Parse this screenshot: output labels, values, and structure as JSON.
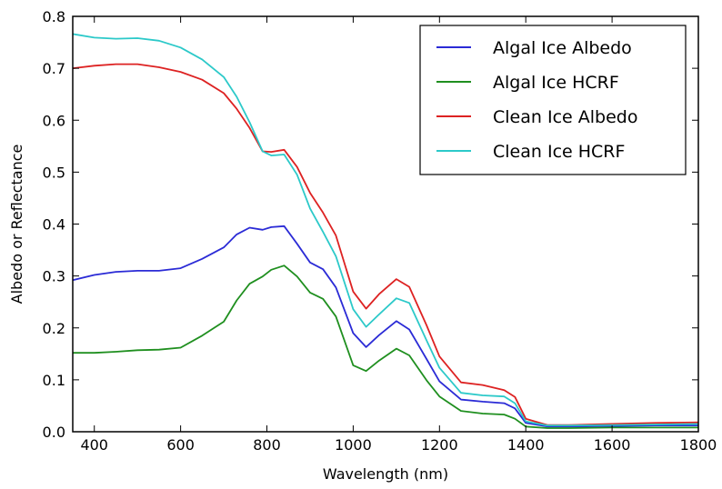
{
  "chart_data": {
    "type": "line",
    "title": "",
    "xlabel": "Wavelength (nm)",
    "ylabel": "Albedo or Reflectance",
    "xlim": [
      350,
      1800
    ],
    "ylim": [
      0.0,
      0.8
    ],
    "x_ticks": [
      400,
      600,
      800,
      1000,
      1200,
      1400,
      1600,
      1800
    ],
    "x_tick_labels": [
      "400",
      "600",
      "800",
      "1000",
      "1200",
      "1400",
      "1600",
      "1800"
    ],
    "y_ticks": [
      0.0,
      0.1,
      0.2,
      0.3,
      0.4,
      0.5,
      0.6,
      0.7,
      0.8
    ],
    "y_tick_labels": [
      "0.0",
      "0.1",
      "0.2",
      "0.3",
      "0.4",
      "0.5",
      "0.6",
      "0.7",
      "0.8"
    ],
    "grid": false,
    "legend_position": "top-right",
    "x": [
      350,
      400,
      450,
      500,
      550,
      600,
      650,
      700,
      730,
      760,
      790,
      810,
      840,
      870,
      900,
      930,
      960,
      1000,
      1030,
      1060,
      1100,
      1130,
      1170,
      1200,
      1250,
      1300,
      1350,
      1375,
      1400,
      1450,
      1500,
      1600,
      1700,
      1800
    ],
    "series": [
      {
        "name": "Algal Ice Albedo",
        "color": "#2b2bd6",
        "values": [
          0.292,
          0.302,
          0.308,
          0.31,
          0.31,
          0.315,
          0.333,
          0.355,
          0.38,
          0.393,
          0.389,
          0.394,
          0.396,
          0.362,
          0.326,
          0.313,
          0.278,
          0.19,
          0.163,
          0.186,
          0.213,
          0.197,
          0.14,
          0.097,
          0.062,
          0.058,
          0.055,
          0.045,
          0.017,
          0.01,
          0.01,
          0.011,
          0.012,
          0.012
        ]
      },
      {
        "name": "Algal Ice HCRF",
        "color": "#1f8f1f",
        "values": [
          0.152,
          0.152,
          0.154,
          0.157,
          0.158,
          0.162,
          0.185,
          0.212,
          0.253,
          0.285,
          0.299,
          0.312,
          0.32,
          0.299,
          0.268,
          0.256,
          0.222,
          0.128,
          0.117,
          0.137,
          0.16,
          0.147,
          0.099,
          0.068,
          0.04,
          0.035,
          0.033,
          0.025,
          0.01,
          0.007,
          0.007,
          0.008,
          0.008,
          0.008
        ]
      },
      {
        "name": "Clean Ice Albedo",
        "color": "#dd2222",
        "values": [
          0.7,
          0.705,
          0.708,
          0.708,
          0.702,
          0.693,
          0.678,
          0.652,
          0.622,
          0.585,
          0.54,
          0.539,
          0.543,
          0.51,
          0.46,
          0.422,
          0.378,
          0.27,
          0.237,
          0.265,
          0.294,
          0.279,
          0.205,
          0.145,
          0.095,
          0.09,
          0.08,
          0.067,
          0.025,
          0.013,
          0.013,
          0.015,
          0.017,
          0.018
        ]
      },
      {
        "name": "Clean Ice HCRF",
        "color": "#2cc9c9",
        "values": [
          0.766,
          0.759,
          0.757,
          0.758,
          0.753,
          0.74,
          0.717,
          0.683,
          0.645,
          0.596,
          0.54,
          0.532,
          0.534,
          0.495,
          0.43,
          0.385,
          0.338,
          0.236,
          0.202,
          0.226,
          0.257,
          0.248,
          0.176,
          0.123,
          0.075,
          0.07,
          0.068,
          0.055,
          0.02,
          0.012,
          0.012,
          0.013,
          0.014,
          0.015
        ]
      }
    ]
  }
}
